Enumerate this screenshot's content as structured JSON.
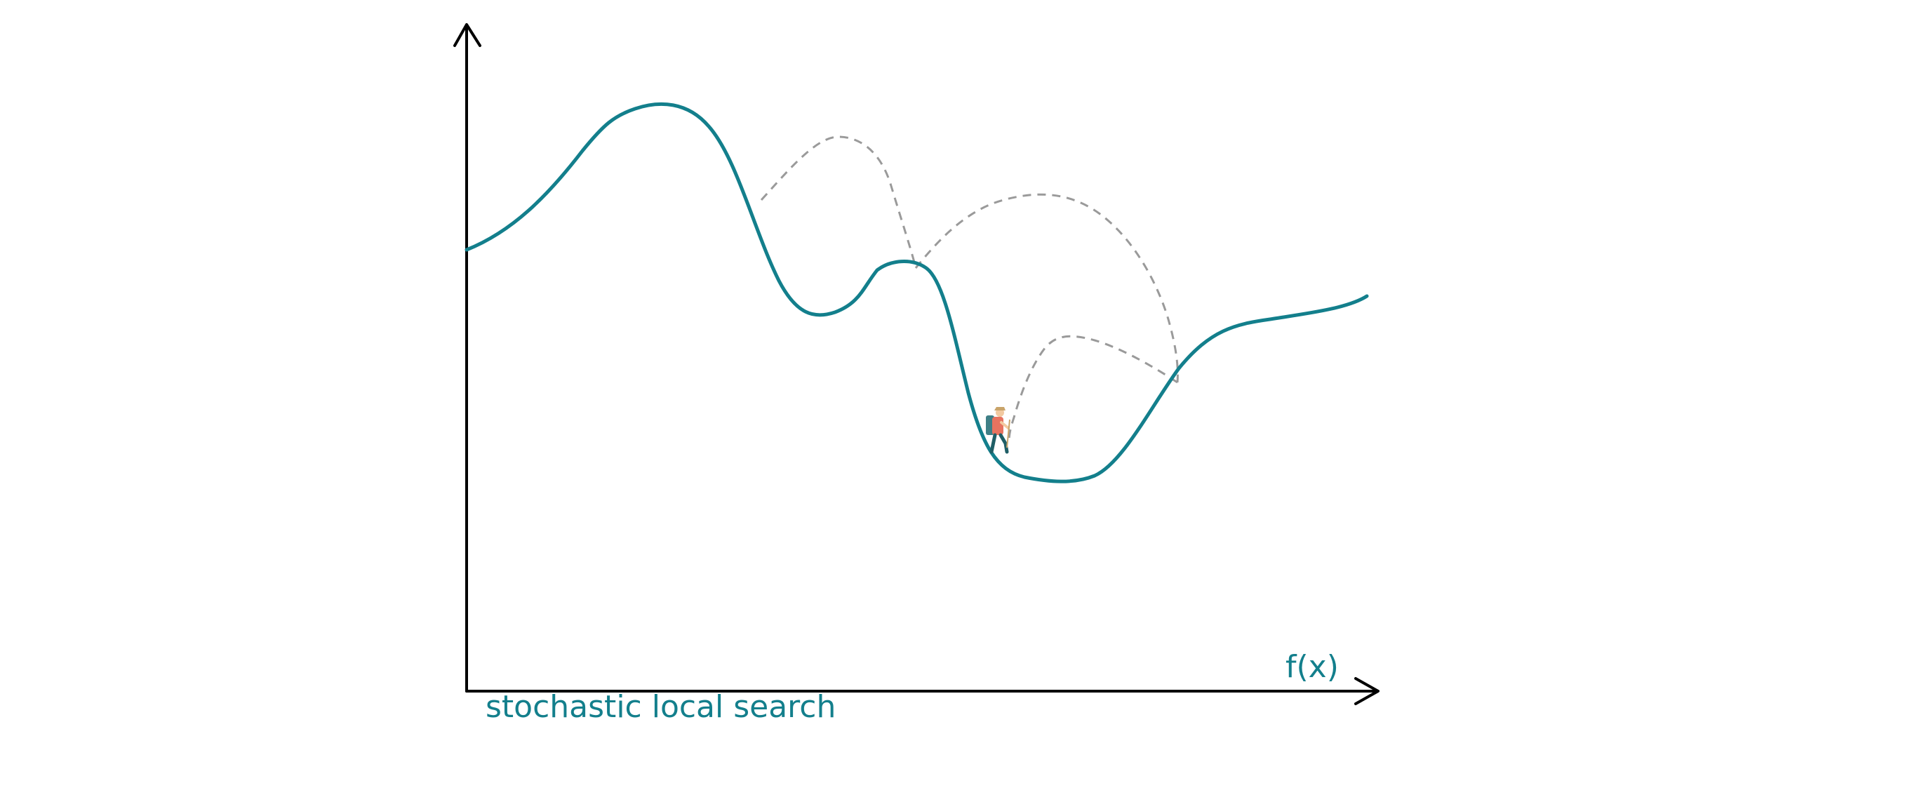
{
  "colors": {
    "curve": "#137f8c",
    "axes": "#000000",
    "jumps": "#9a9a9a",
    "label": "#137f8c",
    "hiker_shirt": "#e8735f",
    "hiker_skin": "#f2c9a0",
    "hiker_hat": "#c9a46a",
    "hiker_pack": "#3f7f86"
  },
  "labels": {
    "x_axis": "f(x)",
    "caption": "stochastic local search"
  },
  "icons": {
    "walker": "hiker-icon"
  }
}
